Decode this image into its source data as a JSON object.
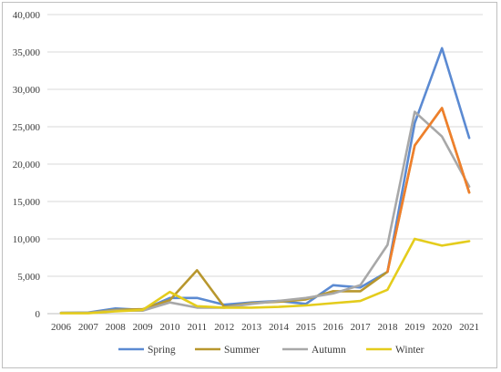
{
  "chart_data": {
    "type": "line",
    "title": "",
    "xlabel": "",
    "ylabel": "",
    "x": [
      "2006",
      "2007",
      "2008",
      "2009",
      "2010",
      "2011",
      "2012",
      "2013",
      "2014",
      "2015",
      "2016",
      "2017",
      "2018",
      "2019",
      "2020",
      "2021"
    ],
    "ylim": [
      0,
      40000
    ],
    "yticks": [
      0,
      5000,
      10000,
      15000,
      20000,
      25000,
      30000,
      35000,
      40000
    ],
    "ytick_labels": [
      "0",
      "5,000",
      "10,000",
      "15,000",
      "20,000",
      "25,000",
      "30,000",
      "35,000",
      "40,000"
    ],
    "grid": "horizontal",
    "legend_position": "bottom",
    "series": [
      {
        "name": "Spring",
        "color": "#5b8ad2",
        "values": [
          100,
          150,
          700,
          500,
          2100,
          2100,
          1200,
          1500,
          1700,
          1300,
          3800,
          3500,
          5600,
          25500,
          35500,
          23500
        ]
      },
      {
        "name": "Summer",
        "color": "#b8972e",
        "values": [
          100,
          100,
          500,
          600,
          1800,
          5800,
          900,
          1400,
          1600,
          1900,
          3000,
          3000,
          5600,
          22500,
          27500,
          16200
        ]
      },
      {
        "name": "Autumn",
        "color": "#a8a8a8",
        "values": [
          100,
          100,
          400,
          400,
          1500,
          800,
          800,
          1300,
          1700,
          2100,
          2700,
          3800,
          9200,
          27000,
          23700,
          17000
        ]
      },
      {
        "name": "Winter",
        "color": "#e4cc1c",
        "values": [
          50,
          50,
          300,
          500,
          2900,
          1000,
          800,
          800,
          900,
          1100,
          1400,
          1700,
          3200,
          10000,
          9100,
          9700
        ]
      }
    ],
    "hidden_series_color": {
      "name": "Summer-orange-overlay",
      "color": "#ef7f2c"
    }
  }
}
